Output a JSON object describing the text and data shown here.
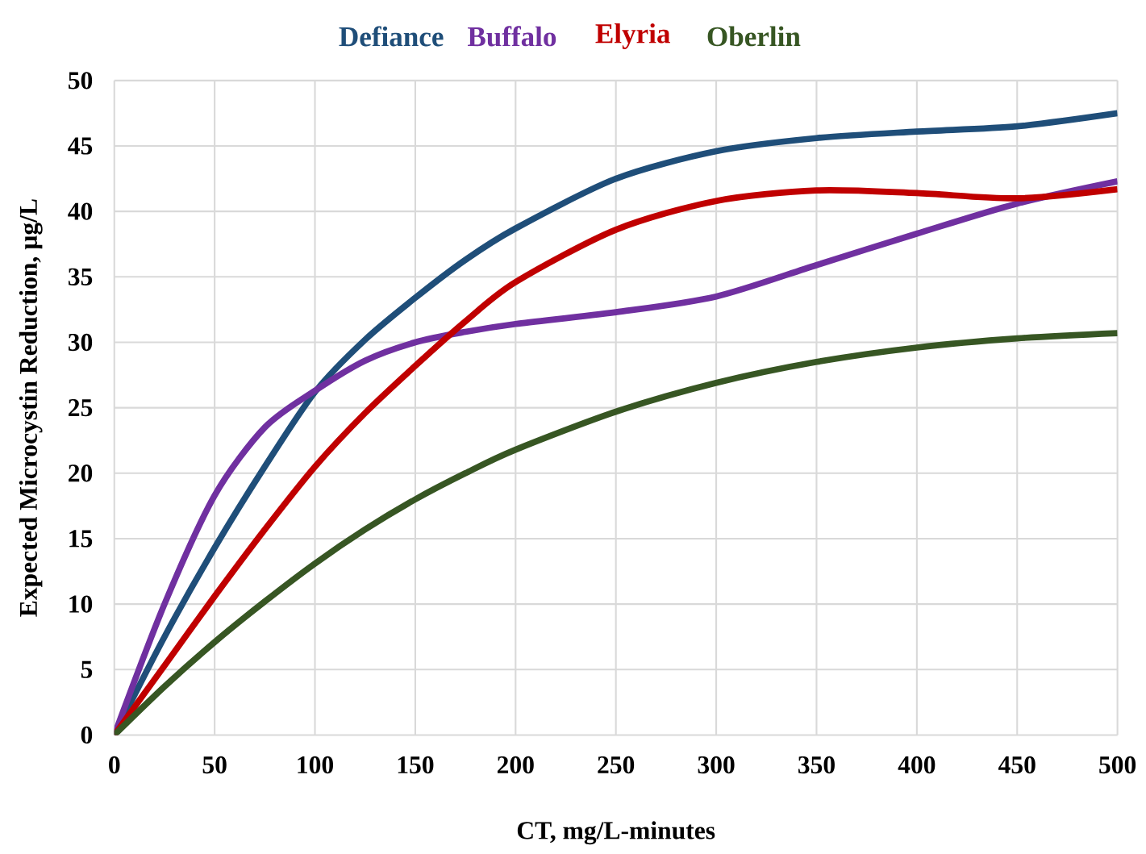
{
  "chart_data": {
    "type": "line",
    "xlabel": "CT, mg/L-minutes",
    "ylabel": "Expected Microcystin Reduction, µg/L",
    "x": [
      0,
      25,
      50,
      75,
      100,
      125,
      150,
      175,
      200,
      250,
      300,
      350,
      400,
      450,
      500
    ],
    "series": [
      {
        "name": "Defiance",
        "color": "#1f4e79",
        "values": [
          0,
          7.5,
          14.3,
          20.5,
          26.2,
          30.2,
          33.4,
          36.3,
          38.7,
          42.5,
          44.6,
          45.6,
          46.1,
          46.5,
          47.5
        ]
      },
      {
        "name": "Buffalo",
        "color": "#7030a0",
        "values": [
          0,
          10,
          18.3,
          23.5,
          26.3,
          28.6,
          30.0,
          30.8,
          31.4,
          32.3,
          33.5,
          35.9,
          38.3,
          40.6,
          42.3
        ]
      },
      {
        "name": "Elyria",
        "color": "#c00000",
        "values": [
          0,
          5.3,
          10.6,
          15.7,
          20.5,
          24.6,
          28.2,
          31.6,
          34.6,
          38.6,
          40.8,
          41.6,
          41.4,
          41.0,
          41.7
        ]
      },
      {
        "name": "Oberlin",
        "color": "#375623",
        "values": [
          0,
          3.7,
          7.1,
          10.2,
          13.1,
          15.7,
          18.0,
          20.0,
          21.8,
          24.7,
          26.9,
          28.5,
          29.6,
          30.3,
          30.7
        ]
      }
    ],
    "xlim": [
      0,
      500
    ],
    "ylim": [
      0,
      50
    ],
    "xticks": [
      0,
      50,
      100,
      150,
      200,
      250,
      300,
      350,
      400,
      450,
      500
    ],
    "yticks": [
      0,
      5,
      10,
      15,
      20,
      25,
      30,
      35,
      40,
      45,
      50
    ],
    "grid": true,
    "legend": "top",
    "marker": "none",
    "line_style": "solid"
  }
}
